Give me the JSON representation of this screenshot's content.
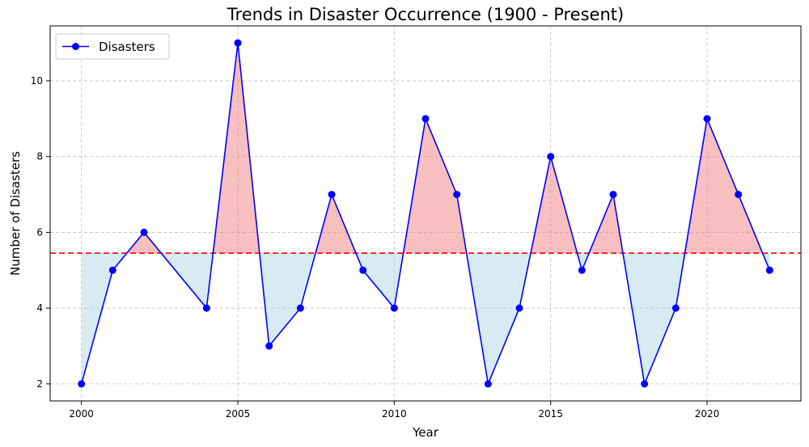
{
  "chart_data": {
    "type": "line",
    "title": "Trends in Disaster Occurrence (1900 - Present)",
    "xlabel": "Year",
    "ylabel": "Number of Disasters",
    "x": [
      2000,
      2001,
      2002,
      2004,
      2005,
      2006,
      2007,
      2008,
      2009,
      2010,
      2011,
      2012,
      2013,
      2014,
      2015,
      2016,
      2017,
      2018,
      2019,
      2020,
      2021,
      2022
    ],
    "series": [
      {
        "name": "Disasters",
        "values": [
          2,
          5,
          6,
          4,
          11,
          3,
          4,
          7,
          5,
          4,
          9,
          7,
          2,
          4,
          8,
          5,
          7,
          2,
          4,
          9,
          7,
          5
        ],
        "color": "#0000ff"
      }
    ],
    "mean_line": {
      "value": 5.45,
      "color": "#ff0000",
      "style": "dashed"
    },
    "fill_above_color": "#f08080",
    "fill_below_color": "#add8e6",
    "xlim": [
      1999,
      2023
    ],
    "ylim": [
      1.55,
      11.45
    ],
    "xticks": [
      2000,
      2005,
      2010,
      2015,
      2020
    ],
    "yticks": [
      2,
      4,
      6,
      8,
      10
    ],
    "grid": true,
    "legend_position": "top-left"
  }
}
